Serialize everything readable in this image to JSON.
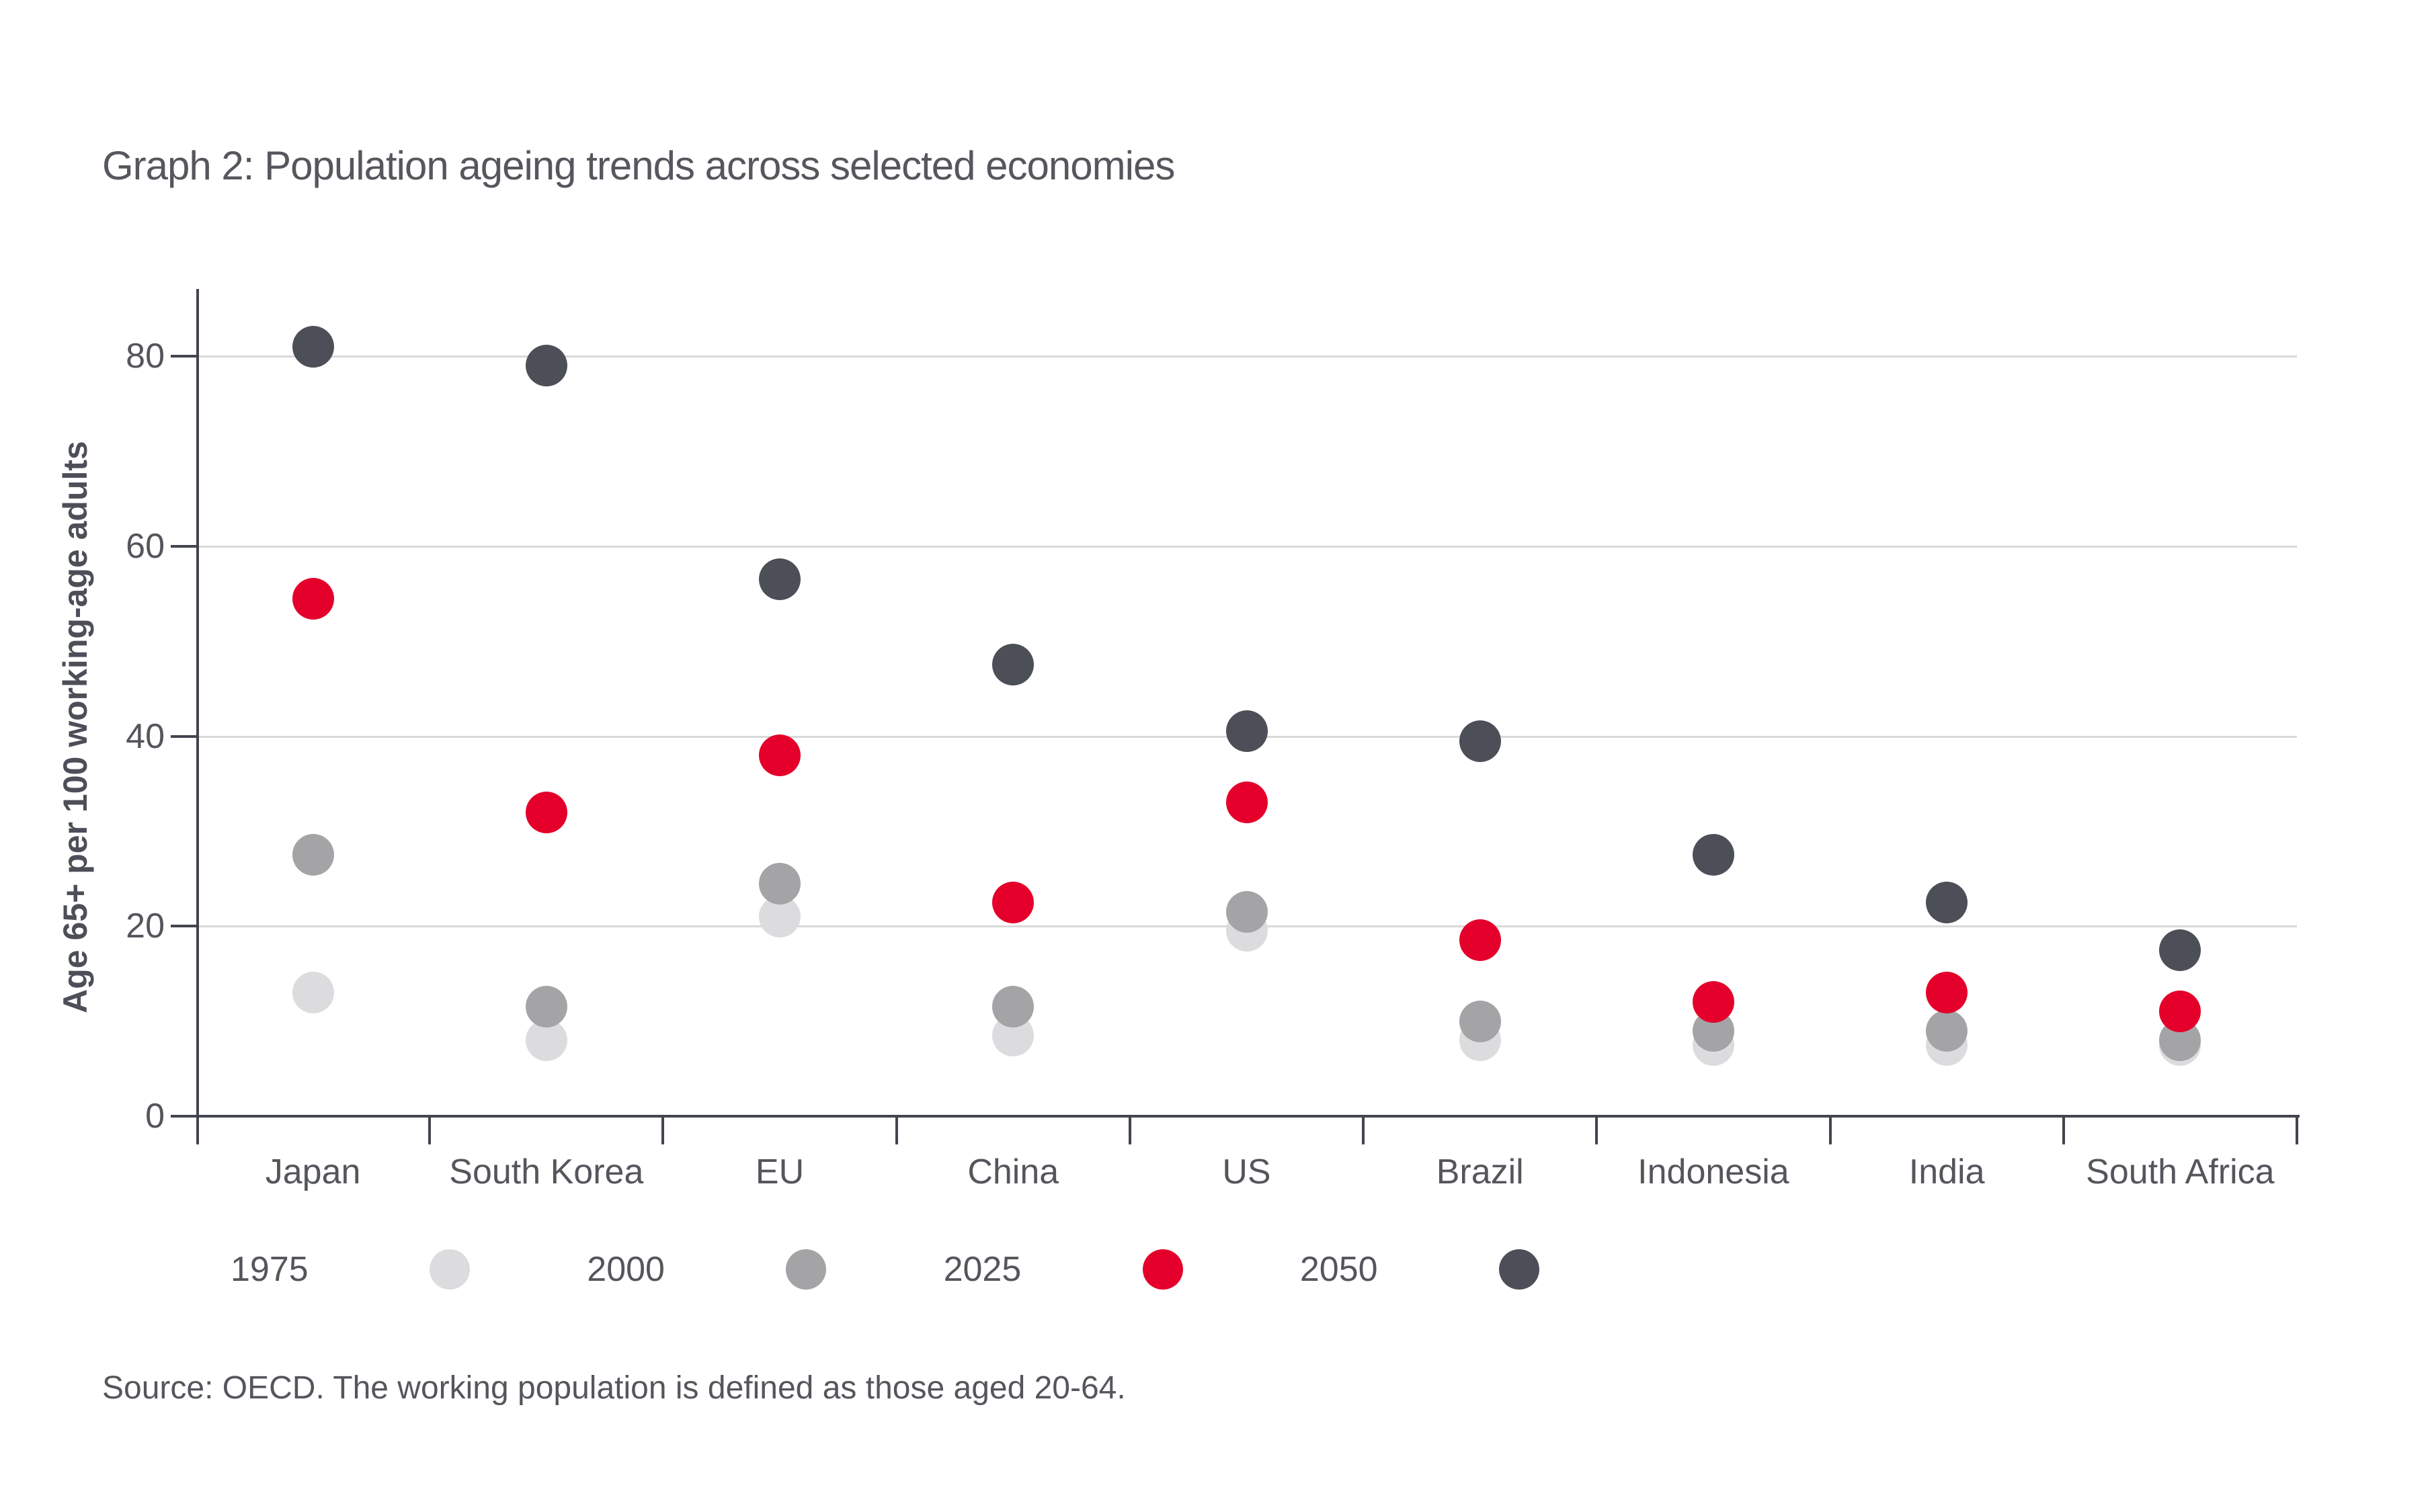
{
  "title": "Graph 2: Population ageing trends across selected economies",
  "source": "Source: OECD. The working population is defined as those aged 20-64.",
  "colors": {
    "text": "#54565c",
    "axis": "#42454e",
    "gridline": "#d9d9d9",
    "background": "#ffffff",
    "accent_red": "#e4002b"
  },
  "chart_data": {
    "type": "scatter",
    "title": "Graph 2: Population ageing trends across selected economies",
    "xlabel": "",
    "ylabel": "Age 65+ per 100 working-age adults",
    "ylim": [
      0,
      87
    ],
    "yticks": [
      0,
      20,
      40,
      60,
      80
    ],
    "grid": "horizontal",
    "legend_position": "bottom",
    "categories": [
      "Japan",
      "South Korea",
      "EU",
      "China",
      "US",
      "Brazil",
      "Indonesia",
      "India",
      "South Africa"
    ],
    "series": [
      {
        "name": "1975",
        "color": "#dcdcde",
        "values": [
          13,
          8,
          21,
          8.5,
          19.5,
          8,
          7.5,
          7.5,
          7.5
        ]
      },
      {
        "name": "2000",
        "color": "#a4a4a6",
        "values": [
          27.5,
          11.5,
          24.5,
          11.5,
          21.5,
          10,
          9,
          9,
          8
        ]
      },
      {
        "name": "2025",
        "color": "#e4002b",
        "values": [
          54.5,
          32,
          38,
          22.5,
          33,
          18.5,
          12,
          13,
          11
        ]
      },
      {
        "name": "2050",
        "color": "#4d4f58",
        "values": [
          81,
          79,
          56.5,
          47.5,
          40.5,
          39.5,
          27.5,
          22.5,
          17.5
        ]
      }
    ]
  }
}
